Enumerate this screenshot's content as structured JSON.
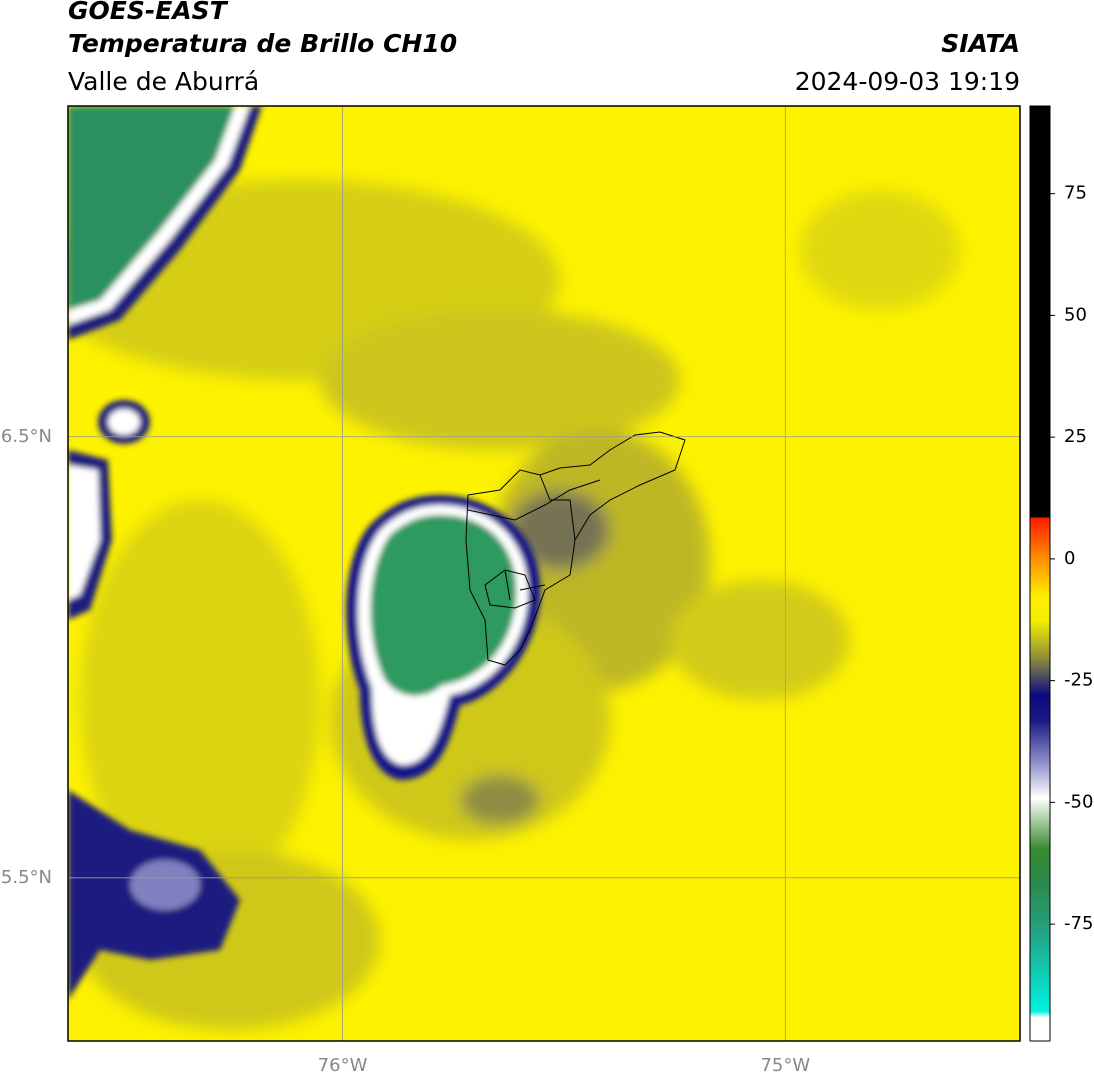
{
  "header": {
    "title": "GOES-EAST",
    "subtitle": "Temperatura de Brillo CH10",
    "region": "Valle de Aburrá",
    "source": "SIATA",
    "timestamp": "2024-09-03 19:19"
  },
  "map": {
    "xlim": [
      -76.62,
      -74.47
    ],
    "ylim": [
      5.13,
      7.25
    ],
    "xticks": [
      {
        "value": -76,
        "label": "76°W"
      },
      {
        "value": -75,
        "label": "75°W"
      }
    ],
    "yticks": [
      {
        "value": 6.5,
        "label": "6.5°N"
      },
      {
        "value": 5.5,
        "label": "5.5°N"
      }
    ]
  },
  "colorbar": {
    "lim": [
      -99,
      93
    ],
    "ticks": [
      75,
      50,
      25,
      0,
      -25,
      -50,
      -75
    ]
  }
}
